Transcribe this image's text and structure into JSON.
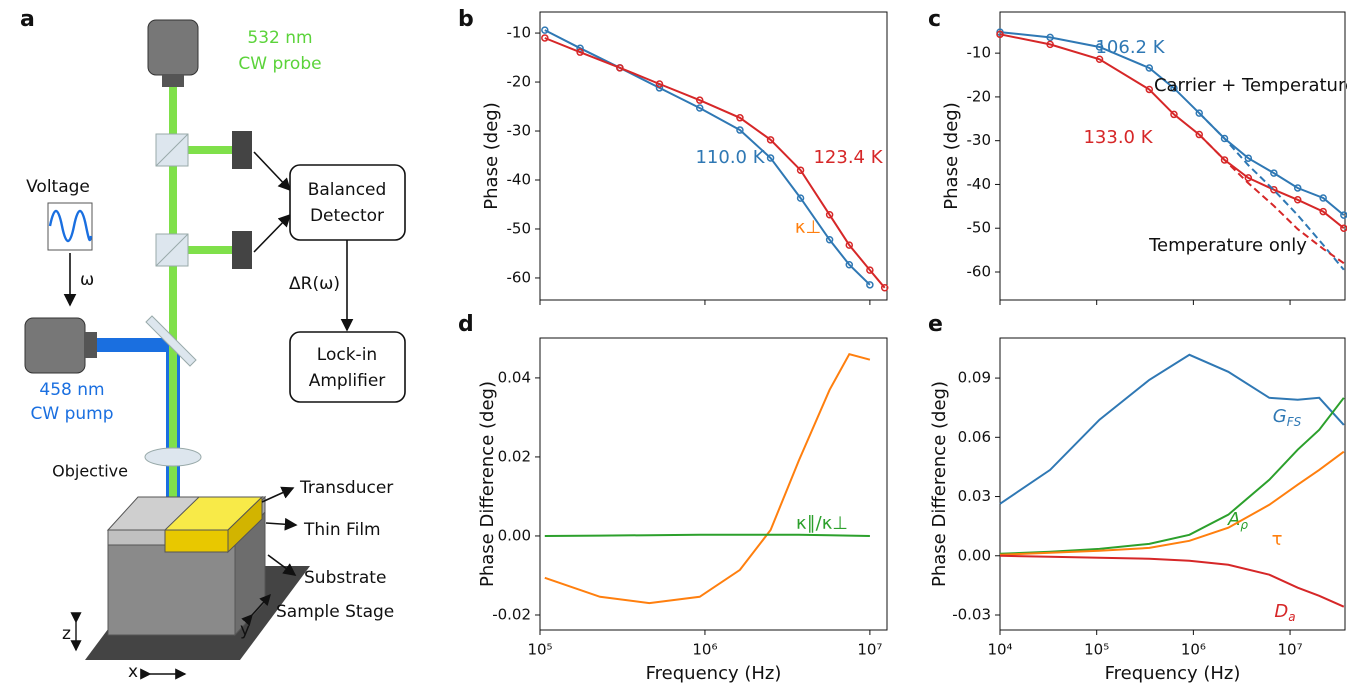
{
  "diagram": {
    "panel": "a",
    "probe_wavelength": "532 nm",
    "probe_type": "CW probe",
    "voltage": "Voltage",
    "omega": "ω",
    "detector_line1": "Balanced",
    "detector_line2": "Detector",
    "signal": "ΔR(ω)",
    "lockin_line1": "Lock-in",
    "lockin_line2": "Amplifier",
    "pump_wavelength": "458 nm",
    "pump_type": "CW pump",
    "objective": "Objective",
    "transducer": "Transducer",
    "thin_film": "Thin Film",
    "substrate": "Substrate",
    "stage": "Sample Stage",
    "axis_z": "z",
    "axis_x": "x",
    "axis_y": "y"
  },
  "chart_data": [
    {
      "type": "line",
      "panel": "b",
      "ylabel": "Phase (deg)",
      "xscale": "log",
      "x": [
        107000,
        175000,
        305000,
        530000,
        930000,
        1630000,
        2500000,
        3800000,
        5700000,
        7500000,
        10000000,
        12300000
      ],
      "series": [
        {
          "name": "110.0 K",
          "color": "#2f78b4",
          "markers": true,
          "values": [
            -9.4,
            -13.1,
            -17.1,
            -21.2,
            -25.3,
            -29.8,
            -35.5,
            -43.7,
            -52.2,
            -57.3,
            -61.4,
            null
          ]
        },
        {
          "name": "123.4 K",
          "color": "#d62728",
          "markers": true,
          "values": [
            -11,
            -13.9,
            -17.1,
            -20.4,
            -23.7,
            -27.3,
            -31.8,
            -38,
            -47.1,
            -53.3,
            -58.4,
            -62
          ]
        }
      ],
      "xlim": [
        100000,
        12700000
      ],
      "xticks": [
        100000,
        1000000,
        10000000
      ],
      "ylim": [
        -64.5,
        -5.7
      ],
      "yticks": [
        -60,
        -50,
        -40,
        -30,
        -20,
        -10
      ]
    },
    {
      "type": "line",
      "panel": "c",
      "ylabel": "Phase (deg)",
      "xscale": "log",
      "x": [
        10000,
        33000,
        107000,
        350000,
        630000,
        1150000,
        2100000,
        3700000,
        6800000,
        12000000,
        22000000,
        36000000
      ],
      "series": [
        {
          "name": "106.2 K",
          "color": "#2f78b4",
          "markers": true,
          "values": [
            -5.2,
            -6.4,
            -8.6,
            -13.4,
            -18,
            -23.7,
            -29.5,
            -34,
            -37.4,
            -40.8,
            -43.1,
            -47
          ]
        },
        {
          "name": "133.0 K",
          "color": "#d62728",
          "markers": true,
          "values": [
            -5.7,
            -8,
            -11.4,
            -18.3,
            -24,
            -28.6,
            -34.4,
            -38.5,
            -41.2,
            -43.5,
            -46.2,
            -50
          ]
        },
        {
          "color": "#2f78b4",
          "dash": true,
          "values": [
            null,
            null,
            null,
            null,
            null,
            -23.7,
            -29.5,
            -35.6,
            -41.3,
            -47,
            -53.8,
            -59.5
          ]
        },
        {
          "color": "#d62728",
          "dash": true,
          "values": [
            null,
            null,
            null,
            null,
            null,
            -28.6,
            -34.4,
            -39.7,
            -44.9,
            -50.2,
            -54.7,
            -58
          ]
        }
      ],
      "annotations": [
        "Carrier + Temperature",
        "Temperature only"
      ],
      "xlim": [
        10000,
        37000000
      ],
      "xticks": [
        10000,
        100000,
        1000000,
        10000000
      ],
      "ylim": [
        -66.4,
        -0.6
      ],
      "yticks": [
        -60,
        -50,
        -40,
        -30,
        -20,
        -10
      ]
    },
    {
      "type": "line",
      "panel": "d",
      "ylabel": "Phase Difference (deg)",
      "xlabel": "Frequency (Hz)",
      "xscale": "log",
      "x": [
        107000,
        231000,
        460000,
        930000,
        1630000,
        2500000,
        3700000,
        5700000,
        7500000,
        10000000
      ],
      "series": [
        {
          "name": "κ⊥",
          "color": "#ff7f0e",
          "values": [
            -0.0106,
            -0.0154,
            -0.017,
            -0.0154,
            -0.0086,
            0.0015,
            0.019,
            0.037,
            0.046,
            0.0446
          ]
        },
        {
          "name": "κ∥/κ⊥",
          "color": "#2ca02c",
          "values": [
            0.0,
            0.0001,
            0.0002,
            0.0003,
            0.0003,
            0.0003,
            0.0003,
            0.0002,
            0.0001,
            0.0
          ]
        }
      ],
      "xlim": [
        100000,
        12700000
      ],
      "xticks": [
        {
          "value": 100000,
          "label": "10⁵"
        },
        {
          "value": 1000000,
          "label": "10⁶"
        },
        {
          "value": 10000000,
          "label": "10⁷"
        }
      ],
      "ylim": [
        -0.0238,
        0.0501
      ],
      "yticks": [
        -0.02,
        {
          "value": 0,
          "label": "0.00"
        },
        0.02,
        0.04
      ]
    },
    {
      "type": "line",
      "panel": "e",
      "ylabel": "Phase Difference (deg)",
      "xlabel": "Frequency (Hz)",
      "xscale": "log",
      "x": [
        10000,
        33000,
        107000,
        350000,
        910000,
        2300000,
        6100000,
        12000000,
        20000000,
        36000000
      ],
      "series": [
        {
          "name": "G",
          "name_sub": "FS",
          "color": "#2f78b4",
          "values": [
            0.0263,
            0.0435,
            0.0689,
            0.0891,
            0.1018,
            0.0932,
            0.08,
            0.079,
            0.08,
            0.0663
          ]
        },
        {
          "name": "A",
          "name_sub": "ρ",
          "color": "#2ca02c",
          "values": [
            0.001,
            0.002,
            0.0035,
            0.006,
            0.0106,
            0.0208,
            0.0385,
            0.0537,
            0.0638,
            0.08
          ]
        },
        {
          "name": "τ",
          "color": "#ff7f0e",
          "values": [
            0.0005,
            0.0015,
            0.0025,
            0.004,
            0.0076,
            0.0142,
            0.0258,
            0.036,
            0.0435,
            0.0527
          ]
        },
        {
          "name": "D",
          "name_sub": "a",
          "color": "#d62728",
          "values": [
            0,
            -0.0005,
            -0.001,
            -0.0015,
            -0.0025,
            -0.0046,
            -0.0096,
            -0.0162,
            -0.0203,
            -0.0258
          ]
        }
      ],
      "xlim": [
        10000,
        37000000
      ],
      "xticks": [
        {
          "value": 10000,
          "label": "10⁴"
        },
        {
          "value": 100000,
          "label": "10⁵"
        },
        {
          "value": 1000000,
          "label": "10⁶"
        },
        {
          "value": 10000000,
          "label": "10⁷"
        }
      ],
      "ylim": [
        -0.0376,
        0.1103
      ],
      "yticks": [
        -0.03,
        {
          "value": 0,
          "label": "0.00"
        },
        0.03,
        0.06,
        0.09
      ]
    }
  ]
}
